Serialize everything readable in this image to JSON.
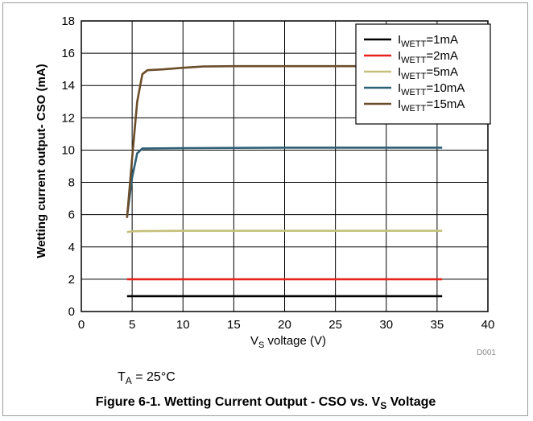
{
  "chart_data": {
    "type": "line",
    "ylabel": "Wetting current output- CSO (mA)",
    "xlabel_main": "V",
    "xlabel_sub": "S",
    "xlabel_rest": " voltage (V)",
    "xlim": [
      0,
      40
    ],
    "ylim": [
      0,
      18
    ],
    "x_ticks": [
      "0",
      "5",
      "10",
      "15",
      "20",
      "25",
      "30",
      "35",
      "40"
    ],
    "y_ticks": [
      "0",
      "2",
      "4",
      "6",
      "8",
      "10",
      "12",
      "14",
      "16",
      "18"
    ],
    "grid": true,
    "legend_position": "top-right",
    "series": [
      {
        "name_main": "I",
        "name_sub": "WETT",
        "name_rest": "=1mA",
        "color": "#000000",
        "x": [
          4.5,
          5,
          6,
          10,
          20,
          30,
          35.5
        ],
        "y": [
          0.95,
          0.95,
          0.95,
          0.95,
          0.95,
          0.95,
          0.95
        ]
      },
      {
        "name_main": "I",
        "name_sub": "WETT",
        "name_rest": "=2mA",
        "color": "#e8211b",
        "x": [
          4.5,
          5,
          6,
          10,
          20,
          30,
          35.5
        ],
        "y": [
          2.0,
          2.0,
          2.0,
          2.0,
          2.0,
          2.0,
          2.0
        ]
      },
      {
        "name_main": "I",
        "name_sub": "WETT",
        "name_rest": "=5mA",
        "color": "#c5c07a",
        "x": [
          4.5,
          5,
          6,
          10,
          20,
          30,
          35.5
        ],
        "y": [
          4.92,
          4.97,
          4.98,
          5.0,
          5.0,
          5.0,
          5.0
        ]
      },
      {
        "name_main": "I",
        "name_sub": "WETT",
        "name_rest": "=10mA",
        "color": "#2e6077",
        "x": [
          4.5,
          5,
          5.5,
          6,
          6.5,
          10,
          20,
          30,
          35.5
        ],
        "y": [
          5.9,
          8.3,
          9.8,
          10.1,
          10.1,
          10.12,
          10.15,
          10.15,
          10.15
        ]
      },
      {
        "name_main": "I",
        "name_sub": "WETT",
        "name_rest": "=15mA",
        "color": "#6b4d2a",
        "x": [
          4.5,
          5,
          5.5,
          6,
          6.5,
          8,
          10,
          12,
          15,
          20,
          25,
          30,
          35.5
        ],
        "y": [
          5.8,
          9.5,
          13.0,
          14.7,
          14.95,
          15.0,
          15.1,
          15.18,
          15.2,
          15.2,
          15.2,
          15.2,
          15.2
        ]
      }
    ],
    "code": "D001"
  },
  "note": {
    "main": "T",
    "sub": "A",
    "rest": " = 25°C"
  },
  "caption": {
    "main": "Figure 6-1. Wetting Current Output - CSO vs. V",
    "sub": "S",
    "rest": " Voltage"
  }
}
